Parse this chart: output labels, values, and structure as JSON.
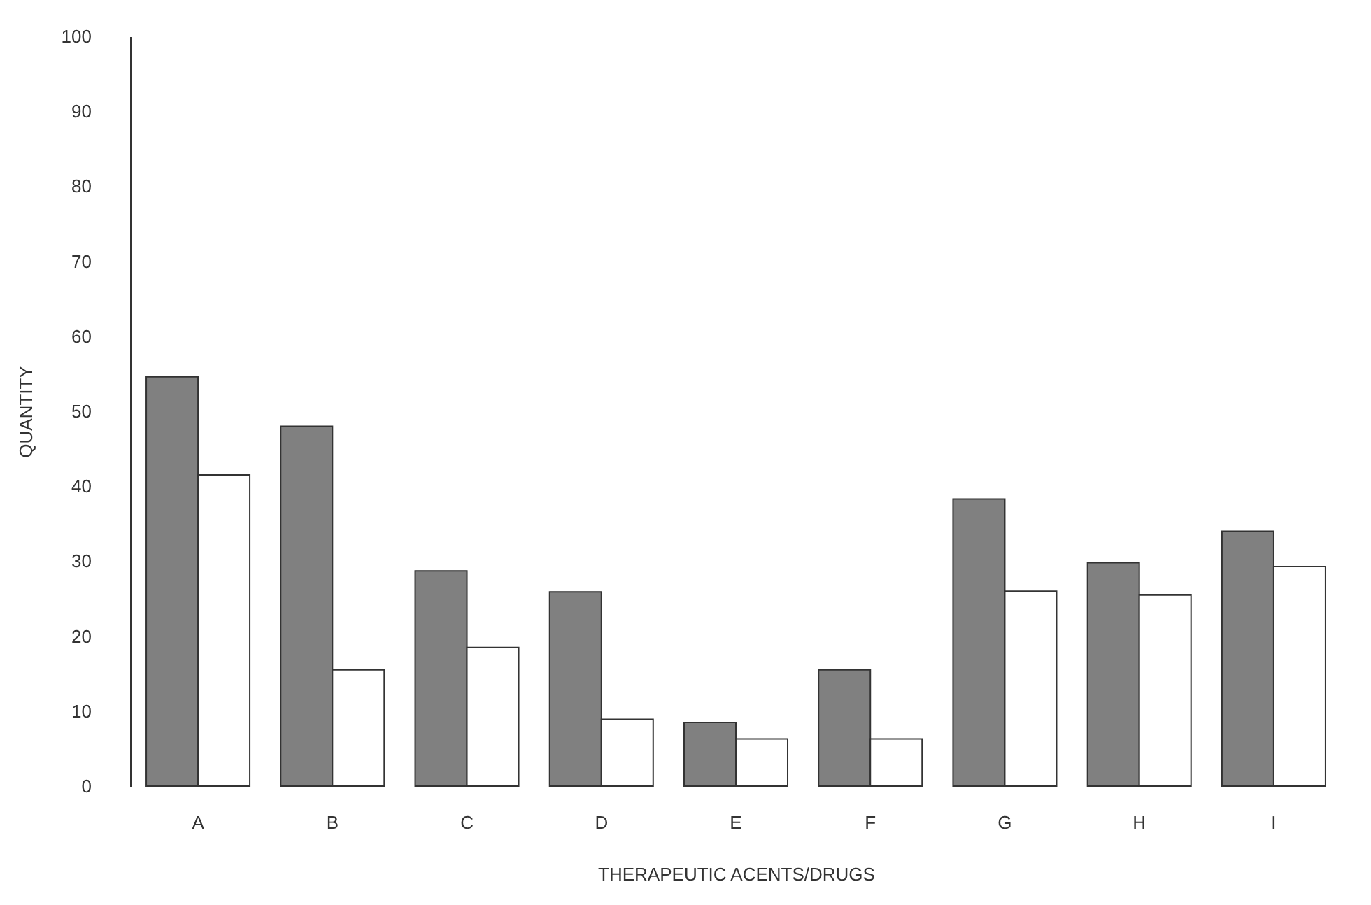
{
  "chart_data": {
    "type": "bar",
    "xlabel": "THERAPEUTIC ACENTS/DRUGS",
    "ylabel": "QUANTITY",
    "categories": [
      "A",
      "B",
      "C",
      "D",
      "E",
      "F",
      "G",
      "H",
      "I"
    ],
    "series": [
      {
        "color": "#808080",
        "values": [
          54.6,
          48,
          28.7,
          25.9,
          8.5,
          15.5,
          38.3,
          29.8,
          34
        ]
      },
      {
        "color": "#ffffff",
        "values": [
          41.5,
          15.5,
          18.5,
          8.9,
          6.3,
          6.3,
          26,
          25.5,
          29.3
        ]
      }
    ],
    "ylim": [
      0,
      100
    ],
    "yticks": [
      0,
      10,
      20,
      30,
      40,
      50,
      60,
      70,
      80,
      90,
      100
    ],
    "grid": false,
    "legend": false
  }
}
